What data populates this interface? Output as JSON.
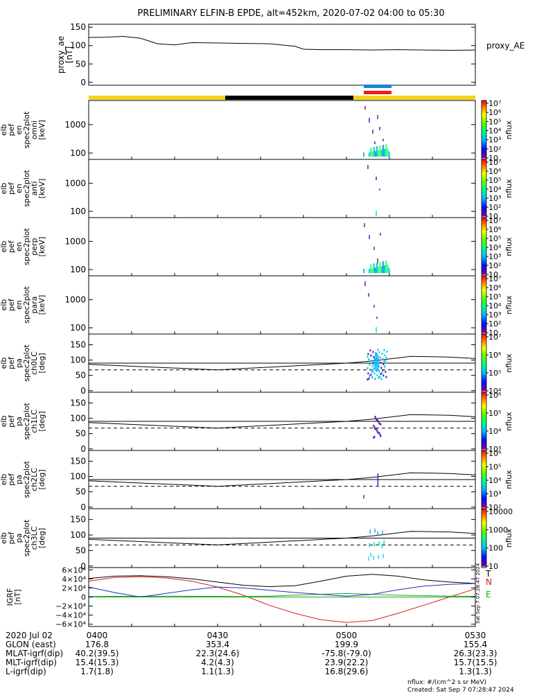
{
  "title": "PRELIMINARY ELFIN-B EPDE, alt=452km, 2020-07-02 04:00 to 05:30",
  "colors": {
    "sunlight_bar": "#f2d41a",
    "shadow_bar": "#000000",
    "science_blue": "#1e7fd8",
    "science_red": "#ee1c1c",
    "igrf_black": "#000000",
    "igrf_blue": "#1a2fc0",
    "igrf_green": "#1aa81a",
    "igrf_red": "#d41c1c"
  },
  "chart_data": [
    {
      "id": "proxy_ae",
      "type": "line",
      "ylabel": [
        "proxy_ae",
        "[nT]"
      ],
      "series_label": "proxy_AE",
      "ylim": [
        -8,
        158
      ],
      "ticks": [
        0,
        50,
        100,
        150
      ],
      "tick_labels": [
        "0",
        "50",
        "100",
        "150"
      ],
      "x": [
        "04:00",
        "04:04",
        "04:08",
        "04:12",
        "04:16",
        "04:20",
        "04:24",
        "04:30",
        "04:36",
        "04:42",
        "04:48",
        "04:50",
        "04:54",
        "05:00",
        "05:06",
        "05:12",
        "05:18",
        "05:24",
        "05:30"
      ],
      "values": [
        122,
        123,
        125,
        120,
        105,
        102,
        108,
        107,
        106,
        105,
        98,
        90,
        89,
        89,
        88,
        89,
        88,
        87,
        88
      ]
    },
    {
      "id": "omni",
      "type": "heatmap",
      "scale": "log",
      "ylabel": [
        "elb",
        "pef",
        "en",
        "spec2plot",
        "omni",
        "[keV]"
      ],
      "ylim": [
        60,
        7000
      ],
      "ticks": [
        100,
        1000
      ],
      "tick_labels": [
        "100",
        "1000"
      ],
      "colorbar": {
        "label": "nflux",
        "ticks": [
          "10",
          "10²",
          "10³",
          "10⁴",
          "10⁵",
          "10⁶",
          "10⁷"
        ]
      }
    },
    {
      "id": "anti",
      "type": "heatmap",
      "scale": "log",
      "ylabel": [
        "elb",
        "pef",
        "en",
        "spec2plot",
        "anti",
        "[keV]"
      ],
      "ylim": [
        60,
        7000
      ],
      "ticks": [
        100,
        1000
      ],
      "tick_labels": [
        "100",
        "1000"
      ],
      "colorbar": {
        "label": "nflux",
        "ticks": [
          "10",
          "10²",
          "10³",
          "10⁴",
          "10⁵",
          "10⁶",
          "10⁷"
        ]
      }
    },
    {
      "id": "perp",
      "type": "heatmap",
      "scale": "log",
      "ylabel": [
        "elb",
        "pef",
        "en",
        "spec2plot",
        "perp",
        "[keV]"
      ],
      "ylim": [
        60,
        7000
      ],
      "ticks": [
        100,
        1000
      ],
      "tick_labels": [
        "100",
        "1000"
      ],
      "colorbar": {
        "label": "nflux",
        "ticks": [
          "10",
          "10²",
          "10³",
          "10⁴",
          "10⁵",
          "10⁶",
          "10⁷"
        ]
      }
    },
    {
      "id": "para",
      "type": "heatmap",
      "scale": "log",
      "ylabel": [
        "elb",
        "pef",
        "en",
        "spec2plot",
        "para",
        "[keV]"
      ],
      "ylim": [
        60,
        7000
      ],
      "ticks": [
        100,
        1000
      ],
      "tick_labels": [
        "100",
        "1000"
      ],
      "colorbar": {
        "label": "nflux",
        "ticks": [
          "10",
          "10²",
          "10³",
          "10⁴",
          "10⁵",
          "10⁶",
          "10⁷"
        ]
      }
    },
    {
      "id": "ch0LC",
      "type": "heatmap",
      "ylabel": [
        "elb",
        "pef",
        "pa",
        "spec2plot",
        "ch0LC",
        "[deg]"
      ],
      "ylim": [
        -5,
        185
      ],
      "ticks": [
        0,
        50,
        100,
        150
      ],
      "tick_labels": [
        "0",
        "50",
        "100",
        "150"
      ],
      "colorbar": {
        "label": "nflux",
        "ticks": [
          "10⁴",
          "10⁵",
          "10⁶",
          "10⁷"
        ]
      }
    },
    {
      "id": "ch1LC",
      "type": "heatmap",
      "ylabel": [
        "elb",
        "pef",
        "pa",
        "spec2plot",
        "ch1LC",
        "[deg]"
      ],
      "ylim": [
        -5,
        185
      ],
      "ticks": [
        0,
        50,
        100,
        150
      ],
      "tick_labels": [
        "0",
        "50",
        "100",
        "150"
      ],
      "colorbar": {
        "label": "nflux",
        "ticks": [
          "10³",
          "10⁴",
          "10⁵",
          "10⁶"
        ]
      }
    },
    {
      "id": "ch2LC",
      "type": "heatmap",
      "ylabel": [
        "elb",
        "pef",
        "pa",
        "spec2plot",
        "ch2LC",
        "[deg]"
      ],
      "ylim": [
        -5,
        185
      ],
      "ticks": [
        0,
        50,
        100,
        150
      ],
      "tick_labels": [
        "0",
        "50",
        "100",
        "150"
      ],
      "colorbar": {
        "label": "nflux",
        "ticks": [
          "10²",
          "10³",
          "10⁴",
          "10⁵",
          "10⁶"
        ]
      }
    },
    {
      "id": "ch3LC",
      "type": "heatmap",
      "ylabel": [
        "elb",
        "pef",
        "pa",
        "spec2plot",
        "ch3LC",
        "[deg]"
      ],
      "ylim": [
        -5,
        185
      ],
      "ticks": [
        0,
        50,
        100,
        150
      ],
      "tick_labels": [
        "0",
        "50",
        "100",
        "150"
      ],
      "colorbar": {
        "label": "nflux",
        "ticks": [
          "10",
          "100",
          "1000",
          "10000"
        ]
      }
    },
    {
      "id": "igrf",
      "type": "line",
      "ylabel": [
        "IGRF",
        "[nT]"
      ],
      "ylim": [
        -65000,
        65000
      ],
      "ticks": [
        -60000,
        -40000,
        -20000,
        0,
        20000,
        40000,
        60000
      ],
      "tick_labels": [
        "−6×10⁴",
        "−4×10⁴",
        "−2×10⁴",
        "0",
        "2×10⁴",
        "4×10⁴",
        "6×10⁴"
      ],
      "x": [
        "04:00",
        "04:06",
        "04:12",
        "04:18",
        "04:24",
        "04:30",
        "04:36",
        "04:42",
        "04:48",
        "04:54",
        "05:00",
        "05:06",
        "05:12",
        "05:18",
        "05:24",
        "05:30"
      ],
      "series": [
        {
          "name": "T",
          "color": "#000000",
          "values": [
            41000,
            46000,
            47000,
            45000,
            40000,
            33000,
            26000,
            23000,
            25000,
            35000,
            46000,
            50000,
            46000,
            38000,
            33000,
            30000
          ]
        },
        {
          "name": "N",
          "color": "#d41c1c",
          "values": [
            35000,
            43000,
            45000,
            42000,
            35000,
            22000,
            4000,
            -18000,
            -36000,
            -50000,
            -56000,
            -52000,
            -36000,
            -18000,
            0,
            18000
          ]
        },
        {
          "name": "E",
          "color": "#1aa81a",
          "values": [
            1000,
            1500,
            1500,
            2000,
            1500,
            1500,
            1000,
            2000,
            4000,
            6000,
            8000,
            6000,
            4000,
            3000,
            2000,
            1500
          ]
        },
        {
          "name": "",
          "color": "#1a2fc0",
          "values": [
            22000,
            10000,
            0,
            8000,
            16000,
            22000,
            20000,
            15000,
            10000,
            6000,
            2000,
            6000,
            16000,
            24000,
            28000,
            30000
          ]
        }
      ]
    }
  ],
  "markers": {
    "legend_letters": [
      {
        "text": "T",
        "color": "#000000"
      },
      {
        "text": "N",
        "color": "#d41c1c"
      },
      {
        "text": "E",
        "color": "#1aa81a"
      }
    ],
    "timestamp_stamp": "Sat Sep  7 07:28:47 2024"
  },
  "x_axis": {
    "labels": [
      "2020 Jul 02",
      "GLON (east)",
      "MLAT-igrf(dip)",
      "MLT-igrf(dip)",
      "L-igrf(dip)"
    ],
    "columns": [
      {
        "time": "0400",
        "glon": "176.8",
        "mlat": "40.2(39.5)",
        "mlt": "15.4(15.3)",
        "l": "1.7(1.8)"
      },
      {
        "time": "0430",
        "glon": "353.4",
        "mlat": "22.3(24.6)",
        "mlt": "4.2(4.3)",
        "l": "1.1(1.3)"
      },
      {
        "time": "0500",
        "glon": "199.9",
        "mlat": "-75.8(-79.0)",
        "mlt": "23.9(22.2)",
        "l": "16.8(29.6)"
      },
      {
        "time": "0530",
        "glon": "155.4",
        "mlat": "26.3(23.3)",
        "mlt": "15.7(15.5)",
        "l": "1.3(1.3)"
      }
    ]
  },
  "footer": {
    "units": "nflux: #/(cm^2 s sr MeV)",
    "created": "Created: Sat Sep  7 07:28:47 2024"
  }
}
